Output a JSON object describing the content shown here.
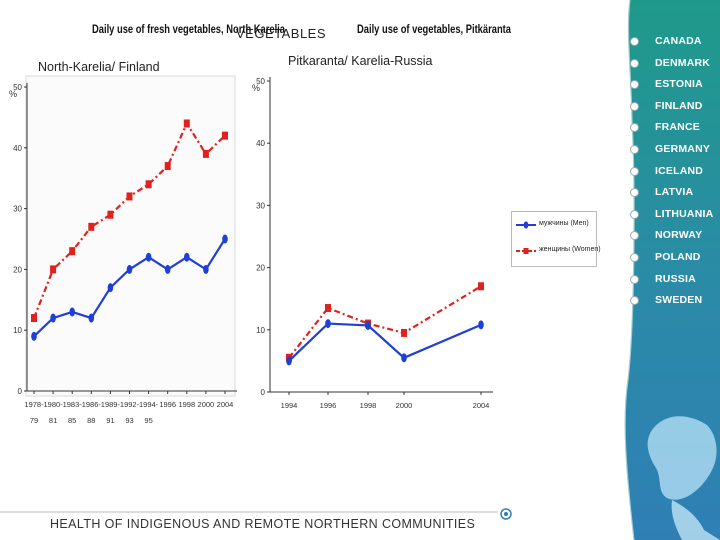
{
  "page": {
    "title": "VEGETABLES",
    "left_subtitle": "North-Karelia/ Finland",
    "right_subtitle": "Pitkaranta/ Karelia-Russia",
    "footer": "HEALTH OF INDIGENOUS AND REMOTE NORTHERN COMMUNITIES"
  },
  "sidebar": {
    "countries": [
      "CANADA",
      "DENMARK",
      "ESTONIA",
      "FINLAND",
      "FRANCE",
      "GERMANY",
      "ICELAND",
      "LATVIA",
      "LITHUANIA",
      "NORWAY",
      "POLAND",
      "RUSSIA",
      "SWEDEN"
    ],
    "colors": {
      "ocean_top": "#1f9a8a",
      "ocean_bottom": "#2f7fb5",
      "land": "#a9d8f0"
    }
  },
  "colors": {
    "men": "#1f3fd6",
    "women": "#e0221f"
  },
  "chart_data": [
    {
      "type": "line",
      "title": "Daily use of fresh vegetables, North Karelia",
      "ylabel": "%",
      "ylim": [
        0,
        50
      ],
      "yticks": [
        "0",
        "10",
        "20",
        "30",
        "40",
        "50"
      ],
      "categories": [
        "1978-79",
        "1980-81",
        "1983-85",
        "1986-88",
        "1989-91",
        "1992-93",
        "1994-95",
        "1996",
        "1998",
        "2000",
        "2004"
      ],
      "tick_top": [
        "1978-",
        "1980-",
        "1983-",
        "1986-",
        "1989-",
        "1992-",
        "1994-",
        "1996",
        "1998",
        "2000",
        "2004"
      ],
      "tick_bottom": [
        "79",
        "81",
        "85",
        "88",
        "91",
        "93",
        "95",
        "",
        "",
        "",
        ""
      ],
      "series": [
        {
          "name": "Men",
          "values": [
            9,
            12,
            13,
            12,
            17,
            20,
            22,
            20,
            22,
            20,
            25
          ]
        },
        {
          "name": "Women",
          "values": [
            12,
            20,
            23,
            27,
            29,
            32,
            34,
            37,
            44,
            39,
            42
          ]
        }
      ]
    },
    {
      "type": "line",
      "title": "Daily use of vegetables, Pitkäranta",
      "ylabel": "%",
      "ylim": [
        0,
        50
      ],
      "yticks": [
        "0",
        "10",
        "20",
        "30",
        "40",
        "50"
      ],
      "categories": [
        "1994",
        "1996",
        "1998",
        "2000",
        "2004"
      ],
      "legend": [
        {
          "label": "мужчины (Men)"
        },
        {
          "label": "женщины (Women)"
        }
      ],
      "series": [
        {
          "name": "мужчины (Men)",
          "values": [
            5,
            11,
            10.7,
            5.5,
            10.8
          ]
        },
        {
          "name": "женщины (Women)",
          "values": [
            5.5,
            13.5,
            11,
            9.5,
            17
          ]
        }
      ]
    }
  ]
}
